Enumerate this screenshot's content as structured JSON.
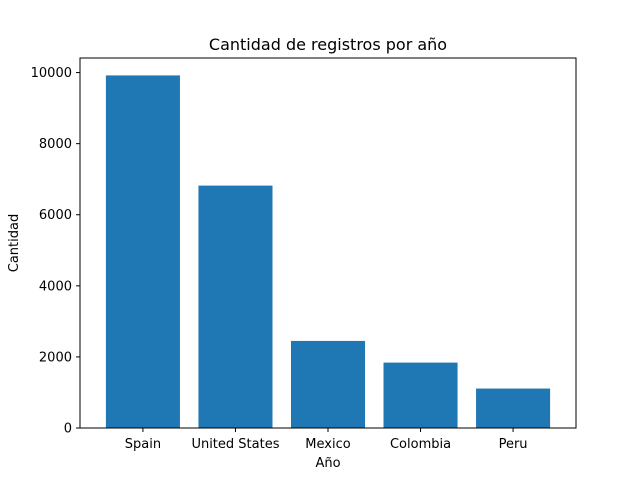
{
  "chart_data": {
    "type": "bar",
    "title": "Cantidad de registros por año",
    "xlabel": "Año",
    "ylabel": "Cantidad",
    "categories": [
      "Spain",
      "United States",
      "Mexico",
      "Colombia",
      "Peru"
    ],
    "values": [
      9920,
      6820,
      2450,
      1840,
      1110
    ],
    "ylim": [
      0,
      10410
    ],
    "yticks": [
      0,
      2000,
      4000,
      6000,
      8000,
      10000
    ],
    "ytick_labels": [
      "0",
      "2000",
      "4000",
      "6000",
      "8000",
      "10000"
    ],
    "bar_color": "#1f77b4",
    "grid": false,
    "legend": "none"
  }
}
